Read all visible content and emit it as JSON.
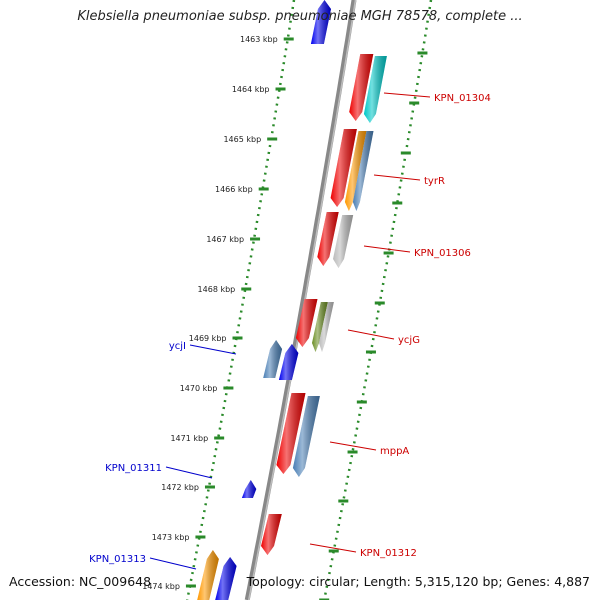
{
  "title": "Klebsiella pneumoniae subsp. pneumoniae MGH 78578, complete ...",
  "footer": {
    "accession": "Accession: NC_009648",
    "summary": "Topology: circular; Length: 5,315,120 bp; Genes: 4,887"
  },
  "colors": {
    "backbone": "#888888",
    "ruler": "#2a8a2a",
    "forward_label": "#cc0000",
    "reverse_label": "#0000cc",
    "red": "#ee0000",
    "blue": "#0000ee",
    "cyan": "#00c8c8",
    "steel": "#4a7fb5",
    "orange": "#ff9900",
    "olive": "#6b8e23",
    "gray": "#bbbbbb"
  },
  "ticks": [
    {
      "label": "1463 kbp"
    },
    {
      "label": "1464 kbp"
    },
    {
      "label": "1465 kbp"
    },
    {
      "label": "1466 kbp"
    },
    {
      "label": "1467 kbp"
    },
    {
      "label": "1468 kbp"
    },
    {
      "label": "1469 kbp"
    },
    {
      "label": "1470 kbp"
    },
    {
      "label": "1471 kbp"
    },
    {
      "label": "1472 kbp"
    },
    {
      "label": "1473 kbp"
    },
    {
      "label": "1474 kbp"
    }
  ],
  "gene_labels_forward": [
    {
      "label": "KPN_01304"
    },
    {
      "label": "tyrR"
    },
    {
      "label": "KPN_01306"
    },
    {
      "label": "ycjG"
    },
    {
      "label": "mppA"
    },
    {
      "label": "KPN_01312"
    }
  ],
  "gene_labels_reverse": [
    {
      "label": "ycjI"
    },
    {
      "label": "KPN_01311"
    },
    {
      "label": "KPN_01313"
    }
  ]
}
